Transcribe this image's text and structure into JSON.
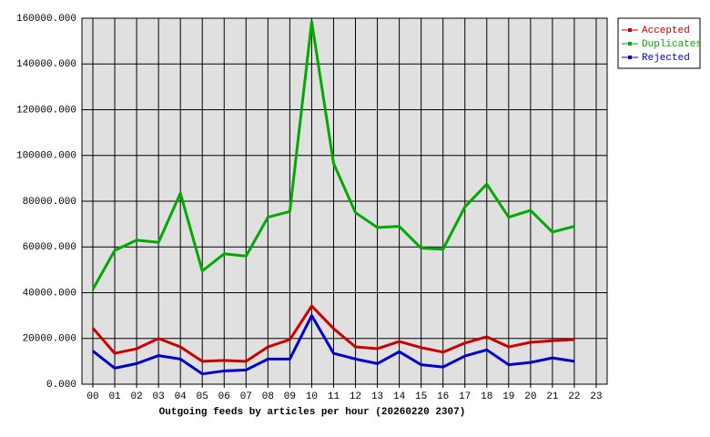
{
  "chart_data": {
    "type": "line",
    "xlabel": "Outgoing feeds by articles per hour (20260220 2307)",
    "categories": [
      "00",
      "01",
      "02",
      "03",
      "04",
      "05",
      "06",
      "07",
      "08",
      "09",
      "10",
      "11",
      "12",
      "13",
      "14",
      "15",
      "16",
      "17",
      "18",
      "19",
      "20",
      "21",
      "22",
      "23"
    ],
    "series": [
      {
        "name": "Accepted",
        "color": "#cc0000",
        "values": [
          24500,
          13500,
          15500,
          20000,
          16300,
          10000,
          10400,
          10000,
          16300,
          19500,
          34200,
          24300,
          16300,
          15500,
          18700,
          16000,
          14000,
          18000,
          20700,
          16300,
          18300,
          19000,
          19500,
          null
        ]
      },
      {
        "name": "Duplicates",
        "color": "#00aa00",
        "values": [
          41500,
          58500,
          63000,
          62000,
          83500,
          49500,
          57000,
          56000,
          73000,
          75500,
          158500,
          96500,
          75000,
          68500,
          69000,
          59500,
          59000,
          77500,
          87500,
          73000,
          76000,
          66500,
          69000,
          null
        ]
      },
      {
        "name": "Rejected",
        "color": "#0000cc",
        "values": [
          14500,
          7000,
          9000,
          12500,
          11000,
          4500,
          5800,
          6200,
          11000,
          11000,
          30000,
          13500,
          11000,
          9000,
          14200,
          8500,
          7500,
          12300,
          15000,
          8500,
          9500,
          11500,
          10000,
          null
        ]
      }
    ],
    "ylim": [
      0,
      160000
    ],
    "yticks": [
      {
        "value": 0,
        "label": "0.000"
      },
      {
        "value": 20000,
        "label": "20000.000"
      },
      {
        "value": 40000,
        "label": "40000.000"
      },
      {
        "value": 60000,
        "label": "60000.000"
      },
      {
        "value": 80000,
        "label": "80000.000"
      },
      {
        "value": 100000,
        "label": "100000.000"
      },
      {
        "value": 120000,
        "label": "120000.000"
      },
      {
        "value": 140000,
        "label": "140000.000"
      },
      {
        "value": 160000,
        "label": "160000.000"
      }
    ],
    "grid": true,
    "legend": "top-right"
  }
}
